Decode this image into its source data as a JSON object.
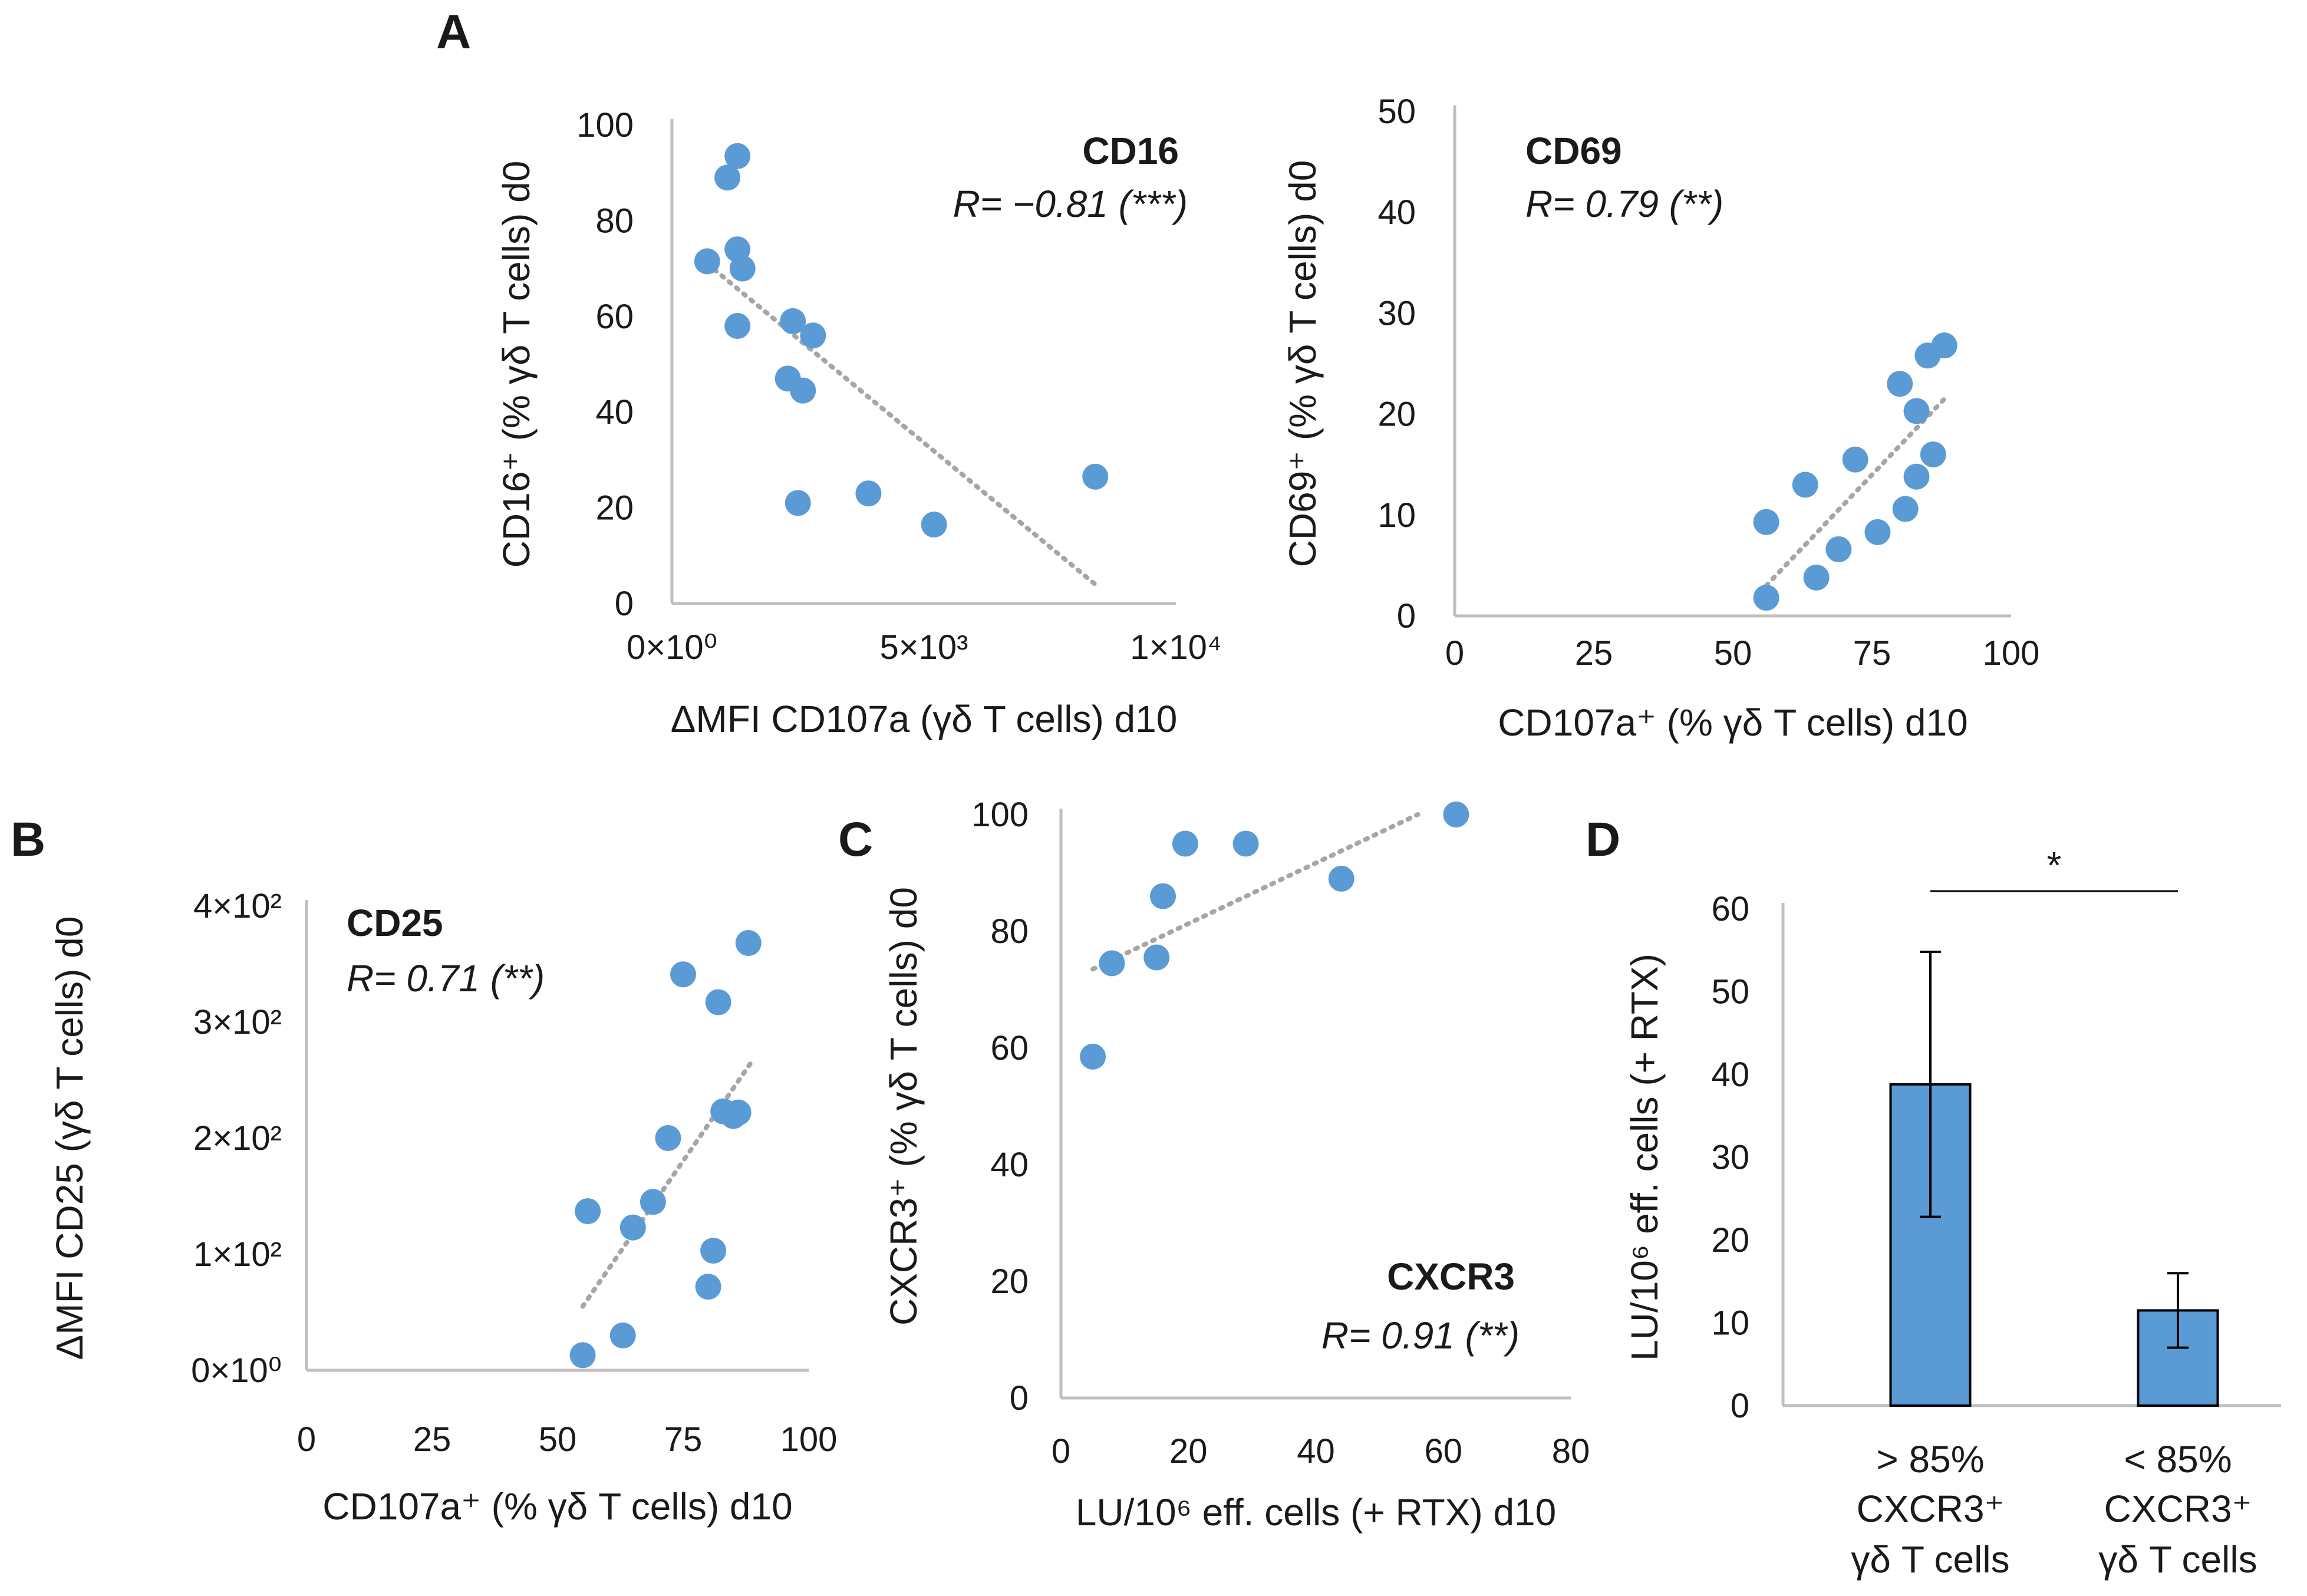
{
  "colors": {
    "point": "#5b9bd5",
    "bar": "#5b9bd5",
    "trendline": "#a6a6a6",
    "axis": "#bfbfbf"
  },
  "chart_data": [
    {
      "id": "A1",
      "panel": "A",
      "type": "scatter",
      "title": "CD16",
      "stat": "R= −0.81 (***)",
      "xlabel": "ΔMFI CD107a (γδ T cells) d10",
      "ylabel": "CD16⁺ (% γδ T cells) d0",
      "xlim": [
        0,
        10000
      ],
      "ylim": [
        0,
        100
      ],
      "xticks": [
        0,
        5000,
        10000
      ],
      "xticklabels": [
        "0×10⁰",
        "5×10³",
        "1×10⁴"
      ],
      "yticks": [
        0,
        20,
        40,
        60,
        80,
        100
      ],
      "yticklabels": [
        "0",
        "20",
        "40",
        "60",
        "80",
        "100"
      ],
      "x": [
        700,
        1100,
        1300,
        1300,
        1400,
        1300,
        2400,
        2800,
        2300,
        2600,
        2500,
        3900,
        5200,
        8400
      ],
      "y": [
        71.5,
        89,
        93.5,
        74,
        70,
        58,
        59,
        56,
        47,
        44.5,
        21,
        23,
        16.5,
        26.5
      ],
      "trend": {
        "x": [
          700,
          8400
        ],
        "y": [
          71,
          4
        ]
      }
    },
    {
      "id": "A2",
      "panel": "",
      "type": "scatter",
      "title": "CD69",
      "stat": "R= 0.79 (**)",
      "xlabel": "CD107a⁺ (% γδ T cells) d10",
      "ylabel": "CD69⁺ (% γδ T cells) d0",
      "xlim": [
        0,
        100
      ],
      "ylim": [
        0,
        50
      ],
      "xticks": [
        0,
        25,
        50,
        75,
        100
      ],
      "xticklabels": [
        "0",
        "25",
        "50",
        "75",
        "100"
      ],
      "yticks": [
        0,
        10,
        20,
        30,
        40,
        50
      ],
      "yticklabels": [
        "0",
        "10",
        "20",
        "30",
        "40",
        "50"
      ],
      "x": [
        56,
        56,
        63,
        65,
        69,
        72,
        76,
        80,
        81,
        83,
        83,
        85,
        86,
        88
      ],
      "y": [
        9.3,
        1.8,
        13,
        3.8,
        6.6,
        15.5,
        8.3,
        23,
        10.6,
        20.3,
        13.8,
        25.8,
        16,
        26.8
      ],
      "trend": {
        "x": [
          56,
          88
        ],
        "y": [
          3,
          21.5
        ]
      }
    },
    {
      "id": "B",
      "panel": "B",
      "type": "scatter",
      "title": "CD25",
      "stat": "R= 0.71 (**)",
      "xlabel": "CD107a⁺ (% γδ T cells) d10",
      "ylabel": "ΔMFI CD25 (γδ T cells) d0",
      "xlim": [
        0,
        100
      ],
      "ylim": [
        0,
        400
      ],
      "xticks": [
        0,
        25,
        50,
        75,
        100
      ],
      "xticklabels": [
        "0",
        "25",
        "50",
        "75",
        "100"
      ],
      "yticks": [
        0,
        100,
        200,
        300,
        400
      ],
      "yticklabels": [
        "0×10⁰",
        "1×10²",
        "2×10²",
        "3×10²",
        "4×10²"
      ],
      "x": [
        55,
        56,
        63,
        65,
        69,
        72,
        75,
        80,
        81,
        82,
        83,
        85,
        86,
        88
      ],
      "y": [
        13,
        137,
        30,
        123,
        145,
        200,
        341,
        72,
        103,
        317,
        223,
        219,
        222,
        368
      ],
      "trend": {
        "x": [
          55,
          89
        ],
        "y": [
          55,
          268
        ]
      }
    },
    {
      "id": "C",
      "panel": "C",
      "type": "scatter",
      "title": "CXCR3",
      "stat": "R= 0.91 (**)",
      "xlabel": "LU/10⁶ eff. cells (+ RTX) d10",
      "ylabel": "CXCR3⁺ (% γδ T cells) d0",
      "xlim": [
        0,
        80
      ],
      "ylim": [
        0,
        100
      ],
      "xticks": [
        0,
        20,
        40,
        60,
        80
      ],
      "xticklabels": [
        "0",
        "20",
        "40",
        "60",
        "80"
      ],
      "yticks": [
        0,
        20,
        40,
        60,
        80,
        100
      ],
      "yticklabels": [
        "0",
        "20",
        "40",
        "60",
        "80",
        "100"
      ],
      "x": [
        5,
        8,
        15,
        16,
        19.5,
        29,
        44,
        62
      ],
      "y": [
        58.5,
        74.5,
        75.5,
        86,
        95,
        95,
        89,
        100
      ],
      "trend": {
        "x": [
          5,
          56
        ],
        "y": [
          73.5,
          100
        ]
      }
    },
    {
      "id": "D",
      "panel": "D",
      "type": "bar",
      "ylabel": "LU/10⁶ eff. cells (+ RTX)",
      "ylim": [
        0,
        60
      ],
      "yticks": [
        0,
        10,
        20,
        30,
        40,
        50,
        60
      ],
      "yticklabels": [
        "0",
        "10",
        "20",
        "30",
        "40",
        "50",
        "60"
      ],
      "categories": [
        [
          "> 85%",
          "CXCR3⁺",
          "γδ T cells"
        ],
        [
          "< 85%",
          "CXCR3⁺",
          "γδ T cells"
        ]
      ],
      "values": [
        38.8,
        11.5
      ],
      "errors": [
        16,
        4.5
      ],
      "significance": "*"
    }
  ]
}
